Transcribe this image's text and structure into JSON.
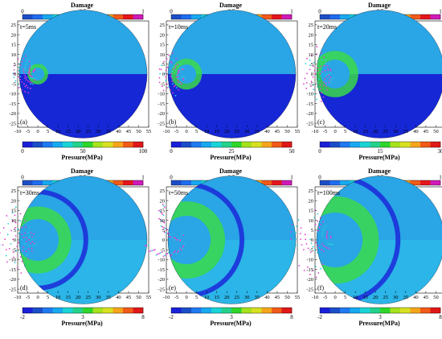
{
  "figure": {
    "damage_title": "Damage",
    "pressure_title": "Pressure(MPa)",
    "damage_ticks": [
      "0",
      "0.5",
      "1"
    ],
    "y_ticks": [
      "25",
      "20",
      "15",
      "10",
      "5",
      "0",
      "-5",
      "-10",
      "-15",
      "-20",
      "-25"
    ],
    "x_ticks": [
      "-10",
      "-5",
      "0",
      "5",
      "10",
      "15",
      "20",
      "25",
      "30",
      "35",
      "40",
      "45",
      "50",
      "55"
    ],
    "damage_colors": [
      "#1b4dc8",
      "#1f6cf0",
      "#17a9f0",
      "#19d4d6",
      "#22d28a",
      "#2dd62a",
      "#a6e21b",
      "#d8e020",
      "#f5a51a",
      "#f25a18",
      "#e6151c",
      "#d01ab8"
    ],
    "pressure_colors": [
      "#1a20d8",
      "#1b4dc8",
      "#1f7af0",
      "#17a9f0",
      "#19d4d6",
      "#22d28a",
      "#2dd62a",
      "#a6e21b",
      "#d8e020",
      "#f5a51a",
      "#f25a18",
      "#e01818"
    ],
    "colors": {
      "rock_upper": "#2aa5e6",
      "rock_lower": "#1627d6",
      "damage_green": "#3ad94a",
      "damage_magenta": "#e040d0",
      "damage_cyan": "#28d0d8"
    },
    "panels": [
      {
        "label": "(a)",
        "time": "t=5ms",
        "pressure_ticks": [
          "0",
          "50",
          "100"
        ]
      },
      {
        "label": "(b)",
        "time": "t=10ms",
        "pressure_ticks": [
          "0",
          "25",
          "50"
        ]
      },
      {
        "label": "(c)",
        "time": "t=20ms",
        "pressure_ticks": [
          "0",
          "15",
          "30"
        ]
      },
      {
        "label": "(d)",
        "time": "t=30ms",
        "pressure_ticks": [
          "-2",
          "3",
          "8"
        ]
      },
      {
        "label": "(e)",
        "time": "t=50ms",
        "pressure_ticks": [
          "-2",
          "3",
          "8"
        ]
      },
      {
        "label": "(f)",
        "time": "t=100ms",
        "pressure_ticks": [
          "-2",
          "3",
          "8"
        ]
      }
    ]
  }
}
